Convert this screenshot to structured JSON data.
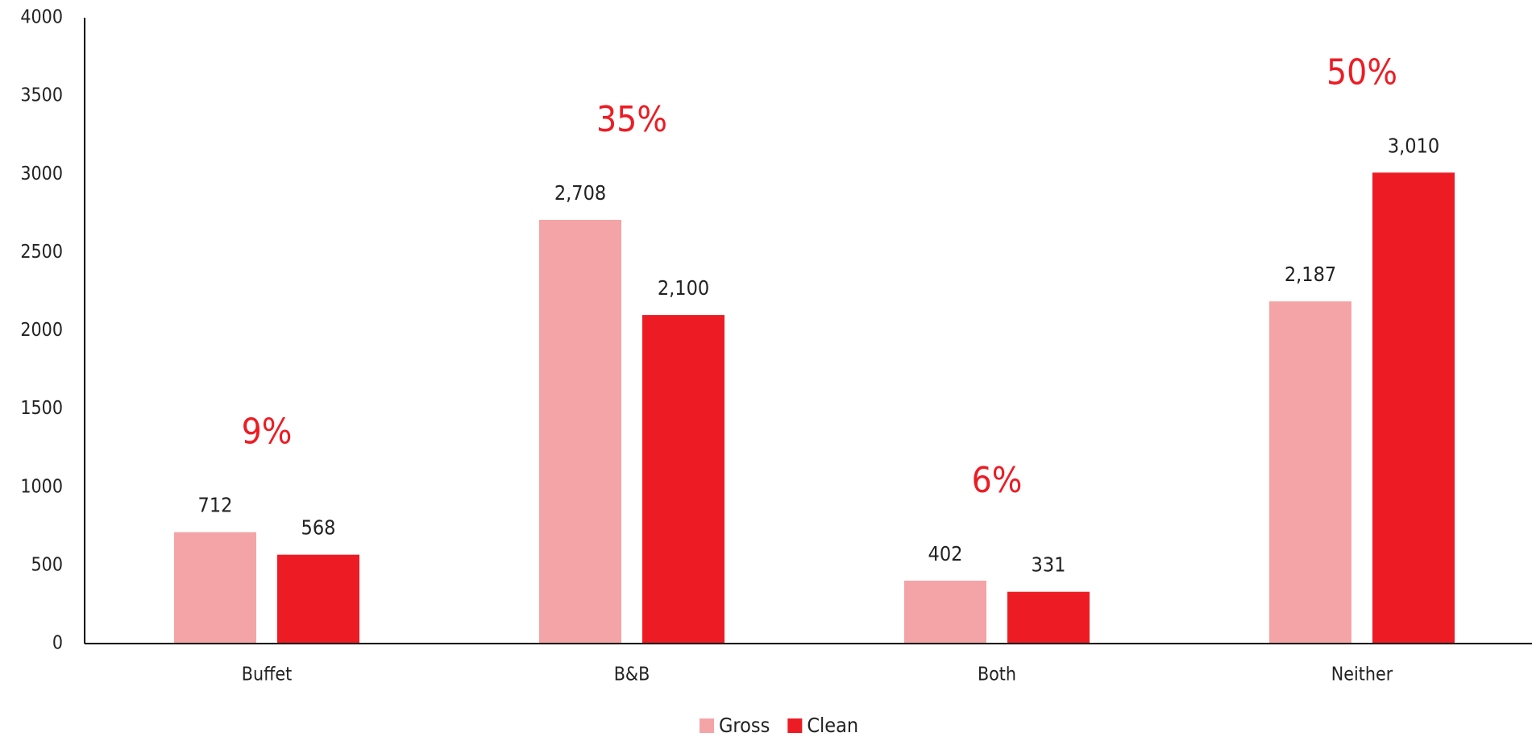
{
  "chart_data": {
    "type": "bar",
    "categories": [
      "Buffet",
      "B&B",
      "Both",
      "Neither"
    ],
    "series": [
      {
        "name": "Gross",
        "color": "#f4a4a7",
        "values": [
          712,
          2708,
          402,
          2187
        ],
        "value_labels": [
          "712",
          "2,708",
          "402",
          "2,187"
        ]
      },
      {
        "name": "Clean",
        "color": "#ed1c24",
        "values": [
          568,
          2100,
          331,
          3010
        ],
        "value_labels": [
          "568",
          "2,100",
          "331",
          "3,010"
        ]
      }
    ],
    "category_annotations": [
      "9%",
      "35%",
      "6%",
      "50%"
    ],
    "annotation_color": "#ed1c24",
    "ylim": [
      0,
      4000
    ],
    "yticks": [
      0,
      500,
      1000,
      1500,
      2000,
      2500,
      3000,
      3500,
      4000
    ],
    "grid": false,
    "legend": "bottom"
  }
}
